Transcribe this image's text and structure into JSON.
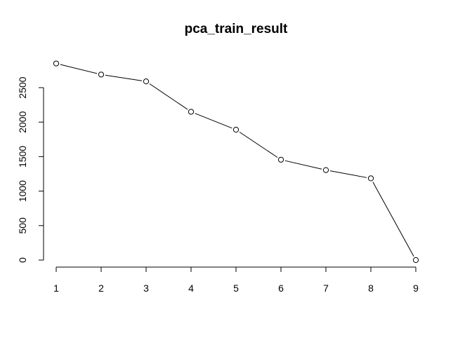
{
  "chart_data": {
    "type": "line",
    "title": "pca_train_result",
    "xlabel": "",
    "ylabel": "",
    "x": [
      1,
      2,
      3,
      4,
      5,
      6,
      7,
      8,
      9
    ],
    "x_ticks": [
      "1",
      "2",
      "3",
      "4",
      "5",
      "6",
      "7",
      "8",
      "9"
    ],
    "series": [
      {
        "values": [
          2850,
          2690,
          2590,
          2150,
          1890,
          1455,
          1305,
          1185,
          0
        ]
      }
    ],
    "y_ticks": [
      "0",
      "500",
      "1000",
      "1500",
      "2000",
      "2500"
    ],
    "xlim": [
      1,
      9
    ],
    "ylim": [
      0,
      2500
    ],
    "grid": false,
    "legend": "none",
    "marker": "open-circle",
    "line_color": "#000000"
  }
}
